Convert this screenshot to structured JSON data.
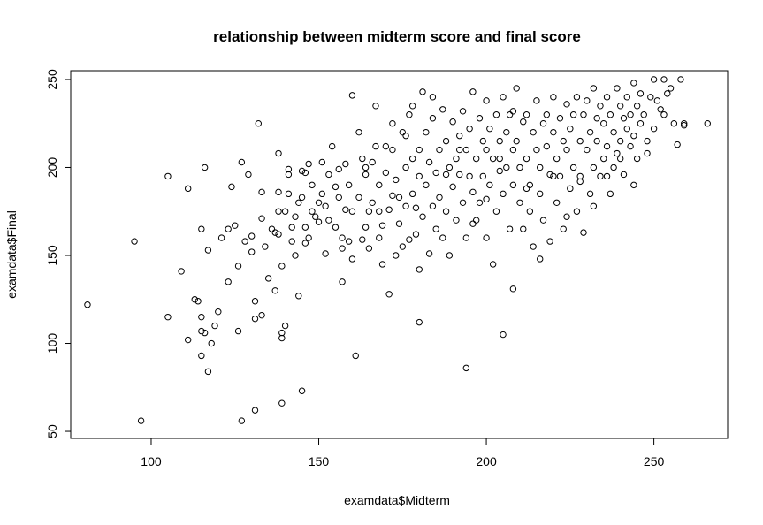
{
  "chart_data": {
    "type": "scatter",
    "title": "relationship between midterm score and final score",
    "xlabel": "examdata$Midterm",
    "ylabel": "examdata$Final",
    "xlim": [
      76,
      272
    ],
    "ylim": [
      46,
      255
    ],
    "xticks": [
      100,
      150,
      200,
      250
    ],
    "yticks": [
      50,
      100,
      150,
      200,
      250
    ],
    "grid": false,
    "legend": "none",
    "marker": "open-circle",
    "marker_color": "#000000",
    "points": [
      [
        81,
        122
      ],
      [
        95,
        158
      ],
      [
        97,
        56
      ],
      [
        105,
        195
      ],
      [
        105,
        115
      ],
      [
        109,
        141
      ],
      [
        111,
        188
      ],
      [
        111,
        102
      ],
      [
        113,
        125
      ],
      [
        114,
        124
      ],
      [
        115,
        165
      ],
      [
        115,
        115
      ],
      [
        115,
        107
      ],
      [
        115,
        93
      ],
      [
        116,
        200
      ],
      [
        116,
        106
      ],
      [
        117,
        84
      ],
      [
        117,
        153
      ],
      [
        118,
        100
      ],
      [
        119,
        110
      ],
      [
        120,
        118
      ],
      [
        121,
        160
      ],
      [
        123,
        135
      ],
      [
        123,
        165
      ],
      [
        124,
        189
      ],
      [
        125,
        167
      ],
      [
        126,
        144
      ],
      [
        126,
        107
      ],
      [
        127,
        203
      ],
      [
        127,
        56
      ],
      [
        128,
        158
      ],
      [
        129,
        196
      ],
      [
        130,
        152
      ],
      [
        130,
        161
      ],
      [
        131,
        62
      ],
      [
        131,
        124
      ],
      [
        131,
        114
      ],
      [
        132,
        225
      ],
      [
        133,
        186
      ],
      [
        133,
        171
      ],
      [
        133,
        116
      ],
      [
        134,
        155
      ],
      [
        135,
        137
      ],
      [
        136,
        165
      ],
      [
        137,
        163
      ],
      [
        137,
        130
      ],
      [
        138,
        186
      ],
      [
        138,
        208
      ],
      [
        138,
        175
      ],
      [
        138,
        162
      ],
      [
        139,
        103
      ],
      [
        139,
        106
      ],
      [
        139,
        66
      ],
      [
        139,
        144
      ],
      [
        140,
        110
      ],
      [
        140,
        175
      ],
      [
        141,
        196
      ],
      [
        141,
        199
      ],
      [
        141,
        185
      ],
      [
        142,
        166
      ],
      [
        142,
        158
      ],
      [
        143,
        150
      ],
      [
        143,
        172
      ],
      [
        144,
        180
      ],
      [
        144,
        127
      ],
      [
        145,
        73
      ],
      [
        145,
        198
      ],
      [
        145,
        183
      ],
      [
        146,
        197
      ],
      [
        146,
        166
      ],
      [
        146,
        157
      ],
      [
        147,
        160
      ],
      [
        147,
        202
      ],
      [
        148,
        175
      ],
      [
        148,
        190
      ],
      [
        149,
        172
      ],
      [
        150,
        180
      ],
      [
        150,
        169
      ],
      [
        151,
        203
      ],
      [
        151,
        185
      ],
      [
        152,
        151
      ],
      [
        152,
        178
      ],
      [
        153,
        196
      ],
      [
        153,
        170
      ],
      [
        154,
        212
      ],
      [
        155,
        189
      ],
      [
        155,
        166
      ],
      [
        156,
        183
      ],
      [
        156,
        199
      ],
      [
        157,
        160
      ],
      [
        157,
        135
      ],
      [
        157,
        154
      ],
      [
        158,
        202
      ],
      [
        158,
        176
      ],
      [
        159,
        158
      ],
      [
        159,
        190
      ],
      [
        160,
        175
      ],
      [
        160,
        148
      ],
      [
        161,
        93
      ],
      [
        162,
        220
      ],
      [
        162,
        183
      ],
      [
        163,
        205
      ],
      [
        163,
        159
      ],
      [
        164,
        196
      ],
      [
        164,
        166
      ],
      [
        165,
        154
      ],
      [
        165,
        175
      ],
      [
        166,
        180
      ],
      [
        166,
        203
      ],
      [
        167,
        212
      ],
      [
        167,
        235
      ],
      [
        168,
        160
      ],
      [
        168,
        190
      ],
      [
        169,
        167
      ],
      [
        169,
        145
      ],
      [
        170,
        212
      ],
      [
        170,
        197
      ],
      [
        171,
        176
      ],
      [
        171,
        128
      ],
      [
        172,
        210
      ],
      [
        172,
        225
      ],
      [
        173,
        150
      ],
      [
        173,
        193
      ],
      [
        174,
        183
      ],
      [
        174,
        168
      ],
      [
        175,
        155
      ],
      [
        175,
        220
      ],
      [
        176,
        200
      ],
      [
        176,
        178
      ],
      [
        177,
        159
      ],
      [
        177,
        230
      ],
      [
        178,
        205
      ],
      [
        178,
        185
      ],
      [
        178,
        235
      ],
      [
        179,
        177
      ],
      [
        179,
        162
      ],
      [
        180,
        210
      ],
      [
        180,
        195
      ],
      [
        180,
        112
      ],
      [
        181,
        243
      ],
      [
        181,
        172
      ],
      [
        182,
        220
      ],
      [
        182,
        190
      ],
      [
        183,
        203
      ],
      [
        183,
        151
      ],
      [
        184,
        228
      ],
      [
        184,
        178
      ],
      [
        185,
        165
      ],
      [
        185,
        197
      ],
      [
        186,
        210
      ],
      [
        186,
        183
      ],
      [
        187,
        233
      ],
      [
        187,
        160
      ],
      [
        188,
        215
      ],
      [
        188,
        175
      ],
      [
        189,
        200
      ],
      [
        189,
        150
      ],
      [
        190,
        226
      ],
      [
        190,
        189
      ],
      [
        191,
        205
      ],
      [
        191,
        170
      ],
      [
        192,
        218
      ],
      [
        192,
        196
      ],
      [
        193,
        232
      ],
      [
        193,
        180
      ],
      [
        194,
        86
      ],
      [
        194,
        210
      ],
      [
        194,
        160
      ],
      [
        195,
        222
      ],
      [
        195,
        195
      ],
      [
        196,
        186
      ],
      [
        196,
        243
      ],
      [
        197,
        205
      ],
      [
        197,
        170
      ],
      [
        198,
        228
      ],
      [
        198,
        180
      ],
      [
        199,
        215
      ],
      [
        199,
        195
      ],
      [
        200,
        238
      ],
      [
        200,
        210
      ],
      [
        200,
        160
      ],
      [
        201,
        222
      ],
      [
        201,
        190
      ],
      [
        202,
        205
      ],
      [
        202,
        145
      ],
      [
        203,
        230
      ],
      [
        203,
        175
      ],
      [
        204,
        215
      ],
      [
        204,
        198
      ],
      [
        205,
        105
      ],
      [
        205,
        240
      ],
      [
        205,
        185
      ],
      [
        206,
        220
      ],
      [
        206,
        200
      ],
      [
        207,
        165
      ],
      [
        207,
        230
      ],
      [
        208,
        210
      ],
      [
        208,
        190
      ],
      [
        208,
        131
      ],
      [
        209,
        245
      ],
      [
        209,
        215
      ],
      [
        210,
        180
      ],
      [
        210,
        200
      ],
      [
        211,
        226
      ],
      [
        211,
        165
      ],
      [
        212,
        230
      ],
      [
        212,
        205
      ],
      [
        213,
        190
      ],
      [
        213,
        175
      ],
      [
        214,
        220
      ],
      [
        214,
        155
      ],
      [
        215,
        238
      ],
      [
        215,
        210
      ],
      [
        216,
        200
      ],
      [
        216,
        185
      ],
      [
        217,
        225
      ],
      [
        217,
        170
      ],
      [
        218,
        230
      ],
      [
        218,
        212
      ],
      [
        219,
        196
      ],
      [
        219,
        158
      ],
      [
        220,
        240
      ],
      [
        220,
        220
      ],
      [
        221,
        205
      ],
      [
        221,
        180
      ],
      [
        222,
        228
      ],
      [
        222,
        195
      ],
      [
        223,
        215
      ],
      [
        223,
        165
      ],
      [
        224,
        236
      ],
      [
        224,
        210
      ],
      [
        225,
        222
      ],
      [
        225,
        188
      ],
      [
        226,
        230
      ],
      [
        226,
        200
      ],
      [
        227,
        240
      ],
      [
        227,
        175
      ],
      [
        228,
        215
      ],
      [
        228,
        195
      ],
      [
        229,
        230
      ],
      [
        229,
        163
      ],
      [
        230,
        238
      ],
      [
        230,
        210
      ],
      [
        231,
        220
      ],
      [
        231,
        185
      ],
      [
        232,
        245
      ],
      [
        232,
        200
      ],
      [
        233,
        228
      ],
      [
        233,
        215
      ],
      [
        234,
        235
      ],
      [
        234,
        195
      ],
      [
        235,
        225
      ],
      [
        235,
        205
      ],
      [
        236,
        240
      ],
      [
        236,
        212
      ],
      [
        237,
        230
      ],
      [
        237,
        185
      ],
      [
        238,
        220
      ],
      [
        238,
        200
      ],
      [
        239,
        245
      ],
      [
        239,
        208
      ],
      [
        240,
        235
      ],
      [
        240,
        215
      ],
      [
        241,
        228
      ],
      [
        241,
        196
      ],
      [
        242,
        240
      ],
      [
        242,
        222
      ],
      [
        243,
        212
      ],
      [
        243,
        230
      ],
      [
        244,
        248
      ],
      [
        244,
        218
      ],
      [
        245,
        235
      ],
      [
        245,
        205
      ],
      [
        246,
        242
      ],
      [
        246,
        225
      ],
      [
        247,
        230
      ],
      [
        248,
        208
      ],
      [
        249,
        240
      ],
      [
        250,
        250
      ],
      [
        250,
        222
      ],
      [
        251,
        238
      ],
      [
        252,
        233
      ],
      [
        253,
        250
      ],
      [
        253,
        230
      ],
      [
        254,
        242
      ],
      [
        255,
        245
      ],
      [
        256,
        225
      ],
      [
        257,
        213
      ],
      [
        258,
        250
      ],
      [
        259,
        224
      ],
      [
        259,
        225
      ],
      [
        266,
        225
      ],
      [
        160,
        241
      ],
      [
        164,
        200
      ],
      [
        168,
        175
      ],
      [
        172,
        184
      ],
      [
        176,
        218
      ],
      [
        180,
        142
      ],
      [
        184,
        240
      ],
      [
        188,
        196
      ],
      [
        192,
        210
      ],
      [
        196,
        168
      ],
      [
        200,
        182
      ],
      [
        204,
        205
      ],
      [
        208,
        232
      ],
      [
        212,
        188
      ],
      [
        216,
        148
      ],
      [
        220,
        195
      ],
      [
        224,
        172
      ],
      [
        228,
        192
      ],
      [
        232,
        178
      ],
      [
        236,
        195
      ],
      [
        240,
        205
      ],
      [
        244,
        190
      ],
      [
        248,
        215
      ]
    ]
  }
}
